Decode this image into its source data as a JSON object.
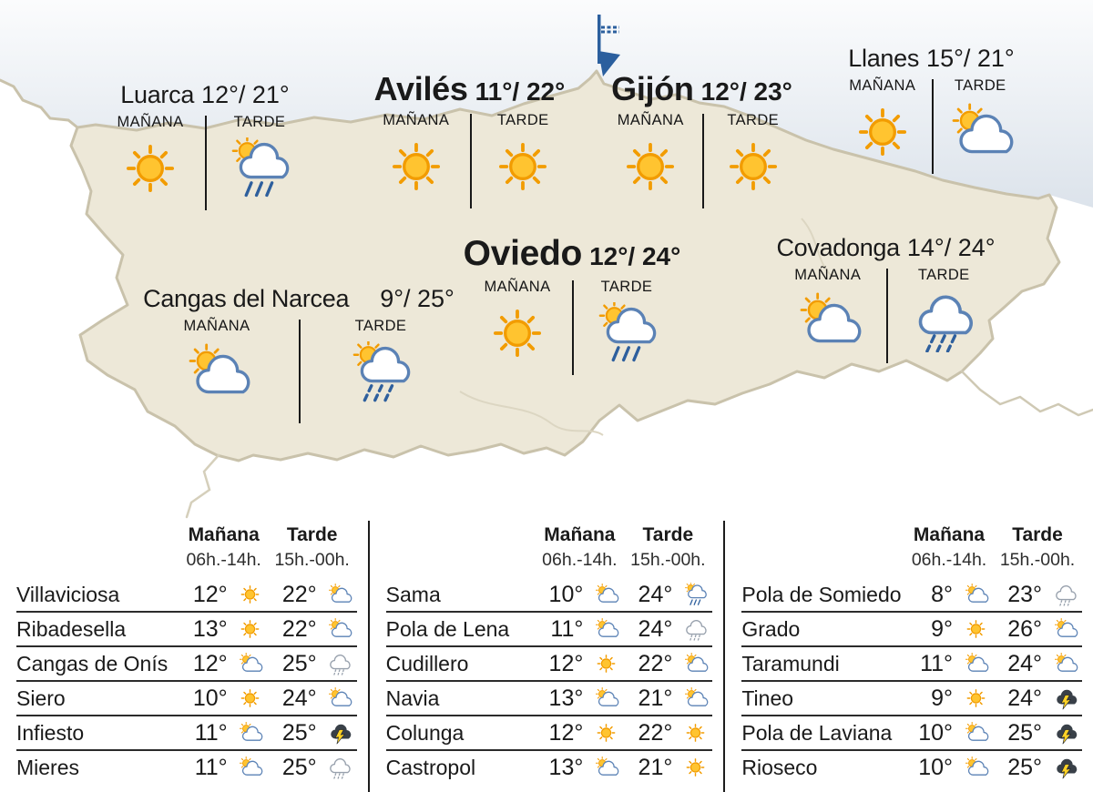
{
  "labels": {
    "morning": "MAÑANA",
    "afternoon": "TARDE",
    "table_morning": "Mañana",
    "table_afternoon": "Tarde",
    "morning_hours": "06h.-14h.",
    "afternoon_hours": "15h.-00h."
  },
  "map": {
    "flag_icon": "pennant-flag",
    "cities": [
      {
        "name": "Luarca",
        "temps": "12°/ 21°",
        "morning_icon": "sun",
        "afternoon_icon": "sun-cloud-rain"
      },
      {
        "name": "Avilés",
        "temps": "11°/ 22°",
        "morning_icon": "sun",
        "afternoon_icon": "sun"
      },
      {
        "name": "Gijón",
        "temps": "12°/ 23°",
        "morning_icon": "sun",
        "afternoon_icon": "sun"
      },
      {
        "name": "Llanes",
        "temps": "15°/ 21°",
        "morning_icon": "sun",
        "afternoon_icon": "sun-cloud"
      },
      {
        "name": "Oviedo",
        "temps": "12°/ 24°",
        "morning_icon": "sun",
        "afternoon_icon": "sun-cloud-rain"
      },
      {
        "name": "Covadonga",
        "temps": "14°/ 24°",
        "morning_icon": "sun-cloud",
        "afternoon_icon": "cloud-rain"
      },
      {
        "name": "Cangas del Narcea",
        "temps": "9°/ 25°",
        "morning_icon": "sun-cloud",
        "afternoon_icon": "sun-cloud-showers"
      }
    ]
  },
  "tables": [
    {
      "rows": [
        {
          "city": "Villaviciosa",
          "morning_temp": "12°",
          "morning_icon": "sun",
          "afternoon_temp": "22°",
          "afternoon_icon": "sun-cloud"
        },
        {
          "city": "Ribadesella",
          "morning_temp": "13°",
          "morning_icon": "sun",
          "afternoon_temp": "22°",
          "afternoon_icon": "sun-cloud"
        },
        {
          "city": "Cangas de Onís",
          "morning_temp": "12°",
          "morning_icon": "sun-cloud",
          "afternoon_temp": "25°",
          "afternoon_icon": "rain"
        },
        {
          "city": "Siero",
          "morning_temp": "10°",
          "morning_icon": "sun",
          "afternoon_temp": "24°",
          "afternoon_icon": "sun-cloud"
        },
        {
          "city": "Infiesto",
          "morning_temp": "11°",
          "morning_icon": "sun-cloud",
          "afternoon_temp": "25°",
          "afternoon_icon": "storm"
        },
        {
          "city": "Mieres",
          "morning_temp": "11°",
          "morning_icon": "sun-cloud",
          "afternoon_temp": "25°",
          "afternoon_icon": "rain"
        }
      ]
    },
    {
      "rows": [
        {
          "city": "Sama",
          "morning_temp": "10°",
          "morning_icon": "sun-cloud",
          "afternoon_temp": "24°",
          "afternoon_icon": "sun-cloud-rain"
        },
        {
          "city": "Pola de Lena",
          "morning_temp": "11°",
          "morning_icon": "sun-cloud",
          "afternoon_temp": "24°",
          "afternoon_icon": "rain"
        },
        {
          "city": "Cudillero",
          "morning_temp": "12°",
          "morning_icon": "sun",
          "afternoon_temp": "22°",
          "afternoon_icon": "sun-cloud"
        },
        {
          "city": "Navia",
          "morning_temp": "13°",
          "morning_icon": "sun-cloud",
          "afternoon_temp": "21°",
          "afternoon_icon": "sun-cloud"
        },
        {
          "city": "Colunga",
          "morning_temp": "12°",
          "morning_icon": "sun",
          "afternoon_temp": "22°",
          "afternoon_icon": "sun"
        },
        {
          "city": "Castropol",
          "morning_temp": "13°",
          "morning_icon": "sun-cloud",
          "afternoon_temp": "21°",
          "afternoon_icon": "sun"
        }
      ]
    },
    {
      "rows": [
        {
          "city": "Pola de Somiedo",
          "morning_temp": "8°",
          "morning_icon": "sun-cloud",
          "afternoon_temp": "23°",
          "afternoon_icon": "rain"
        },
        {
          "city": "Grado",
          "morning_temp": "9°",
          "morning_icon": "sun",
          "afternoon_temp": "26°",
          "afternoon_icon": "sun-cloud"
        },
        {
          "city": "Taramundi",
          "morning_temp": "11°",
          "morning_icon": "sun-cloud",
          "afternoon_temp": "24°",
          "afternoon_icon": "sun-cloud"
        },
        {
          "city": "Tineo",
          "morning_temp": "9°",
          "morning_icon": "sun",
          "afternoon_temp": "24°",
          "afternoon_icon": "storm"
        },
        {
          "city": "Pola de Laviana",
          "morning_temp": "10°",
          "morning_icon": "sun-cloud",
          "afternoon_temp": "25°",
          "afternoon_icon": "storm"
        },
        {
          "city": "Rioseco",
          "morning_temp": "10°",
          "morning_icon": "sun-cloud",
          "afternoon_temp": "25°",
          "afternoon_icon": "storm"
        }
      ]
    }
  ],
  "colors": {
    "sun_fill": "#FFC430",
    "sun_stroke": "#F29C00",
    "cloud_stroke_blue": "#5B82B5",
    "rain_blue": "#2E5F9D",
    "cloud_stroke_gray": "#98A1AD",
    "storm_cloud": "#394048",
    "lightning": "#FFD225",
    "land_fill": "#EDE8D8",
    "land_border": "#C9C2AB",
    "sea_top": "#FBFCFD",
    "sea_bottom": "#DCE3EB",
    "flag_blue": "#2B5F9E",
    "divider": "#191919"
  }
}
